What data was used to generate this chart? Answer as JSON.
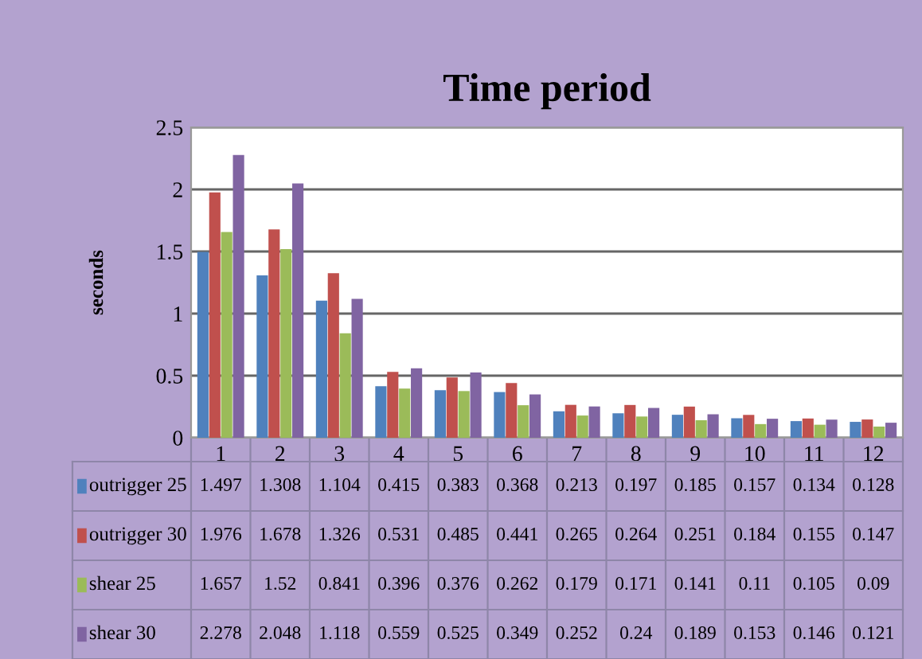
{
  "chart_data": {
    "type": "bar",
    "title": "Time period",
    "ylabel": "seconds",
    "categories": [
      "1",
      "2",
      "3",
      "4",
      "5",
      "6",
      "7",
      "8",
      "9",
      "10",
      "11",
      "12"
    ],
    "series": [
      {
        "name": "outrigger 25",
        "color": "#4f81bd",
        "values": [
          1.497,
          1.308,
          1.104,
          0.415,
          0.383,
          0.368,
          0.213,
          0.197,
          0.185,
          0.157,
          0.134,
          0.128
        ]
      },
      {
        "name": "outrigger 30",
        "color": "#c0504d",
        "values": [
          1.976,
          1.678,
          1.326,
          0.531,
          0.485,
          0.441,
          0.265,
          0.264,
          0.251,
          0.184,
          0.155,
          0.147
        ]
      },
      {
        "name": "shear 25",
        "color": "#9bbb59",
        "values": [
          1.657,
          1.52,
          0.841,
          0.396,
          0.376,
          0.262,
          0.179,
          0.171,
          0.141,
          0.11,
          0.105,
          0.09
        ]
      },
      {
        "name": "shear 30",
        "color": "#8064a2",
        "values": [
          2.278,
          2.048,
          1.118,
          0.559,
          0.525,
          0.349,
          0.252,
          0.24,
          0.189,
          0.153,
          0.146,
          0.121
        ]
      }
    ],
    "ylim": [
      0,
      2.5
    ],
    "yticks": [
      0,
      0.5,
      1,
      1.5,
      2,
      2.5
    ],
    "grid": "y",
    "data_labels": true,
    "legend": "bottom"
  }
}
